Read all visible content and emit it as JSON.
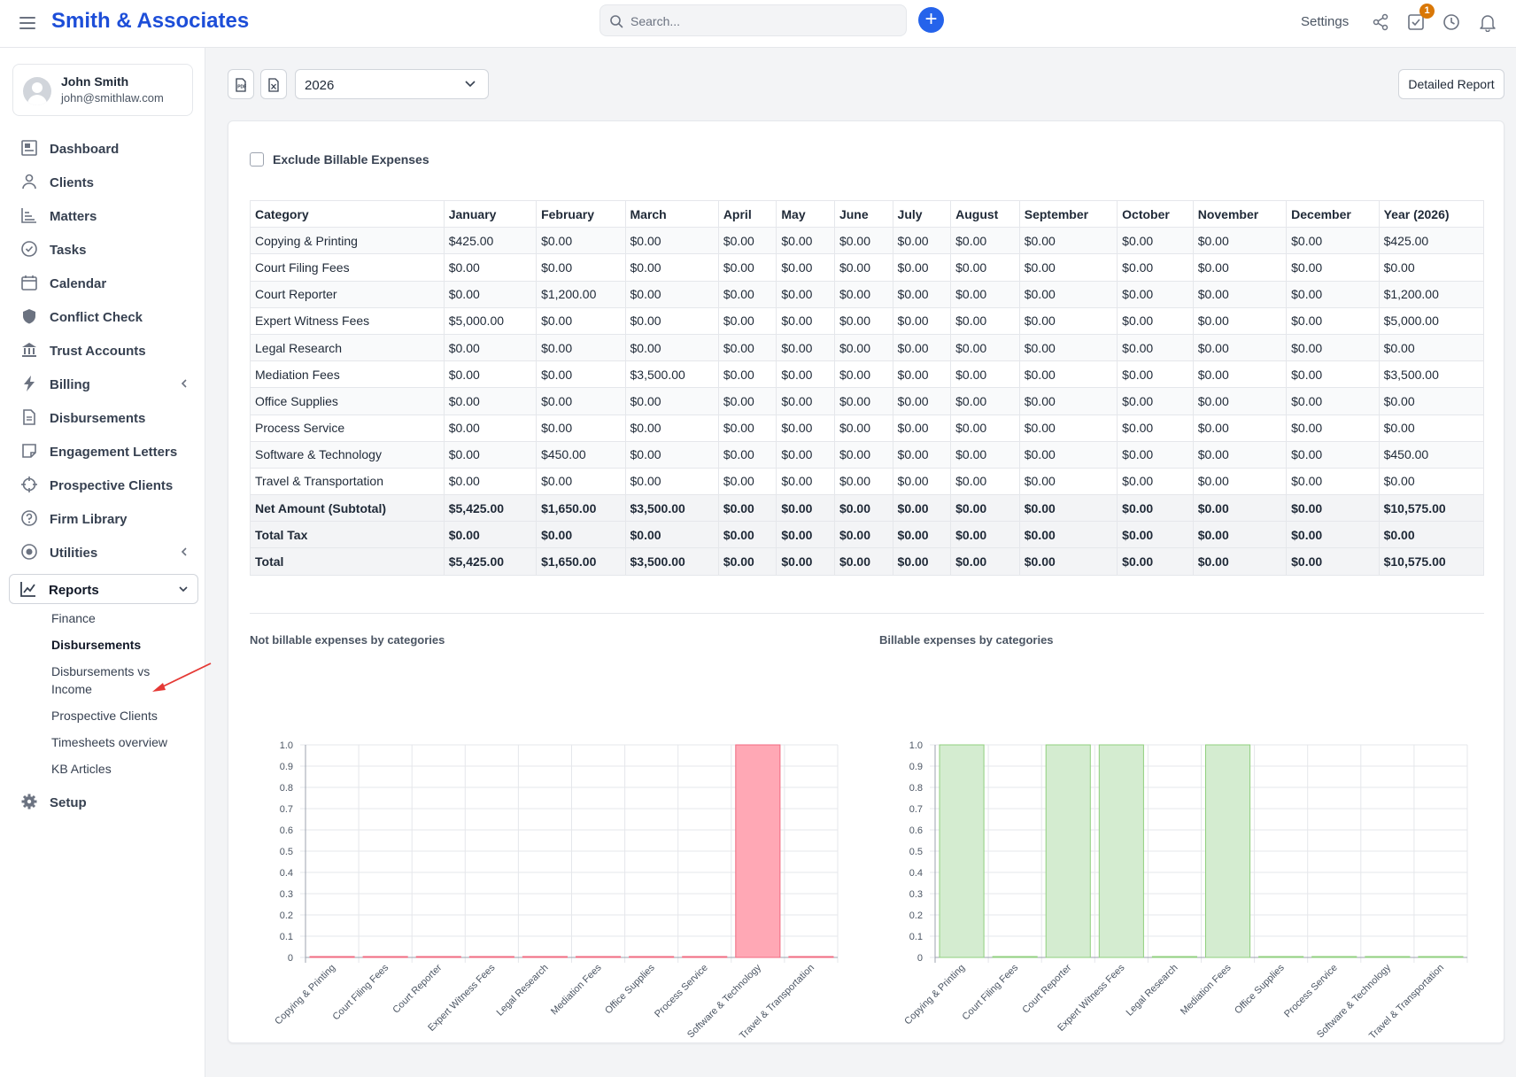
{
  "header": {
    "brand": "Smith & Associates",
    "search_placeholder": "Search...",
    "settings_label": "Settings",
    "task_badge": "1"
  },
  "user": {
    "name": "John Smith",
    "email": "john@smithlaw.com"
  },
  "nav": [
    {
      "label": "Dashboard",
      "icon": "dashboard-icon"
    },
    {
      "label": "Clients",
      "icon": "user-icon"
    },
    {
      "label": "Matters",
      "icon": "matters-icon"
    },
    {
      "label": "Tasks",
      "icon": "check-circle-icon"
    },
    {
      "label": "Calendar",
      "icon": "calendar-icon"
    },
    {
      "label": "Conflict Check",
      "icon": "shield-icon"
    },
    {
      "label": "Trust Accounts",
      "icon": "bank-icon"
    },
    {
      "label": "Billing",
      "icon": "lightning-icon"
    },
    {
      "label": "Disbursements",
      "icon": "document-icon"
    },
    {
      "label": "Engagement Letters",
      "icon": "note-icon"
    },
    {
      "label": "Prospective Clients",
      "icon": "crosshair-icon"
    },
    {
      "label": "Firm Library",
      "icon": "question-circle-icon"
    },
    {
      "label": "Utilities",
      "icon": "radio-icon"
    },
    {
      "label": "Reports",
      "icon": "line-chart-icon"
    }
  ],
  "reports_sub": [
    {
      "label": "Finance"
    },
    {
      "label": "Disbursements"
    },
    {
      "label": "Disbursements vs Income"
    },
    {
      "label": "Prospective Clients"
    },
    {
      "label": "Timesheets overview"
    },
    {
      "label": "KB Articles"
    }
  ],
  "setup_label": "Setup",
  "toolbar": {
    "year": "2026",
    "detailed_report": "Detailed Report"
  },
  "exclude_label": "Exclude Billable Expenses",
  "table": {
    "headers": [
      "Category",
      "January",
      "February",
      "March",
      "April",
      "May",
      "June",
      "July",
      "August",
      "September",
      "October",
      "November",
      "December",
      "Year (2026)"
    ],
    "rows": [
      [
        "Copying & Printing",
        "$425.00",
        "$0.00",
        "$0.00",
        "$0.00",
        "$0.00",
        "$0.00",
        "$0.00",
        "$0.00",
        "$0.00",
        "$0.00",
        "$0.00",
        "$0.00",
        "$425.00"
      ],
      [
        "Court Filing Fees",
        "$0.00",
        "$0.00",
        "$0.00",
        "$0.00",
        "$0.00",
        "$0.00",
        "$0.00",
        "$0.00",
        "$0.00",
        "$0.00",
        "$0.00",
        "$0.00",
        "$0.00"
      ],
      [
        "Court Reporter",
        "$0.00",
        "$1,200.00",
        "$0.00",
        "$0.00",
        "$0.00",
        "$0.00",
        "$0.00",
        "$0.00",
        "$0.00",
        "$0.00",
        "$0.00",
        "$0.00",
        "$1,200.00"
      ],
      [
        "Expert Witness Fees",
        "$5,000.00",
        "$0.00",
        "$0.00",
        "$0.00",
        "$0.00",
        "$0.00",
        "$0.00",
        "$0.00",
        "$0.00",
        "$0.00",
        "$0.00",
        "$0.00",
        "$5,000.00"
      ],
      [
        "Legal Research",
        "$0.00",
        "$0.00",
        "$0.00",
        "$0.00",
        "$0.00",
        "$0.00",
        "$0.00",
        "$0.00",
        "$0.00",
        "$0.00",
        "$0.00",
        "$0.00",
        "$0.00"
      ],
      [
        "Mediation Fees",
        "$0.00",
        "$0.00",
        "$3,500.00",
        "$0.00",
        "$0.00",
        "$0.00",
        "$0.00",
        "$0.00",
        "$0.00",
        "$0.00",
        "$0.00",
        "$0.00",
        "$3,500.00"
      ],
      [
        "Office Supplies",
        "$0.00",
        "$0.00",
        "$0.00",
        "$0.00",
        "$0.00",
        "$0.00",
        "$0.00",
        "$0.00",
        "$0.00",
        "$0.00",
        "$0.00",
        "$0.00",
        "$0.00"
      ],
      [
        "Process Service",
        "$0.00",
        "$0.00",
        "$0.00",
        "$0.00",
        "$0.00",
        "$0.00",
        "$0.00",
        "$0.00",
        "$0.00",
        "$0.00",
        "$0.00",
        "$0.00",
        "$0.00"
      ],
      [
        "Software & Technology",
        "$0.00",
        "$450.00",
        "$0.00",
        "$0.00",
        "$0.00",
        "$0.00",
        "$0.00",
        "$0.00",
        "$0.00",
        "$0.00",
        "$0.00",
        "$0.00",
        "$450.00"
      ],
      [
        "Travel & Transportation",
        "$0.00",
        "$0.00",
        "$0.00",
        "$0.00",
        "$0.00",
        "$0.00",
        "$0.00",
        "$0.00",
        "$0.00",
        "$0.00",
        "$0.00",
        "$0.00",
        "$0.00"
      ]
    ],
    "summary_rows": [
      [
        "Net Amount (Subtotal)",
        "$5,425.00",
        "$1,650.00",
        "$3,500.00",
        "$0.00",
        "$0.00",
        "$0.00",
        "$0.00",
        "$0.00",
        "$0.00",
        "$0.00",
        "$0.00",
        "$0.00",
        "$10,575.00"
      ],
      [
        "Total Tax",
        "$0.00",
        "$0.00",
        "$0.00",
        "$0.00",
        "$0.00",
        "$0.00",
        "$0.00",
        "$0.00",
        "$0.00",
        "$0.00",
        "$0.00",
        "$0.00",
        "$0.00"
      ],
      [
        "Total",
        "$5,425.00",
        "$1,650.00",
        "$3,500.00",
        "$0.00",
        "$0.00",
        "$0.00",
        "$0.00",
        "$0.00",
        "$0.00",
        "$0.00",
        "$0.00",
        "$0.00",
        "$10,575.00"
      ]
    ]
  },
  "chart_data": [
    {
      "type": "bar",
      "title": "Not billable expenses by categories",
      "categories": [
        "Copying & Printing",
        "Court Filing Fees",
        "Court Reporter",
        "Expert Witness Fees",
        "Legal Research",
        "Mediation Fees",
        "Office Supplies",
        "Process Service",
        "Software & Technology",
        "Travel & Transportation"
      ],
      "values": [
        0,
        0,
        0,
        0,
        0,
        0,
        0,
        0,
        1,
        0
      ],
      "ylim": [
        0,
        1
      ],
      "yticks": [
        "0",
        "0.1",
        "0.2",
        "0.3",
        "0.4",
        "0.5",
        "0.6",
        "0.7",
        "0.8",
        "0.9",
        "1.0"
      ],
      "grid": true,
      "bar_fill": "#ffa8b5",
      "bar_stroke": "#f06a80"
    },
    {
      "type": "bar",
      "title": "Billable expenses by categories",
      "categories": [
        "Copying & Printing",
        "Court Filing Fees",
        "Court Reporter",
        "Expert Witness Fees",
        "Legal Research",
        "Mediation Fees",
        "Office Supplies",
        "Process Service",
        "Software & Technology",
        "Travel & Transportation"
      ],
      "values": [
        1,
        0,
        1,
        1,
        0,
        1,
        0,
        0,
        0,
        0
      ],
      "ylim": [
        0,
        1
      ],
      "yticks": [
        "0",
        "0.1",
        "0.2",
        "0.3",
        "0.4",
        "0.5",
        "0.6",
        "0.7",
        "0.8",
        "0.9",
        "1.0"
      ],
      "grid": true,
      "bar_fill": "#d4ecd0",
      "bar_stroke": "#8fcf7e"
    }
  ],
  "colors": {
    "brand": "#1d4ed8",
    "accent": "#2563eb",
    "badge": "#d97706",
    "annotation_arrow": "#e53935"
  }
}
